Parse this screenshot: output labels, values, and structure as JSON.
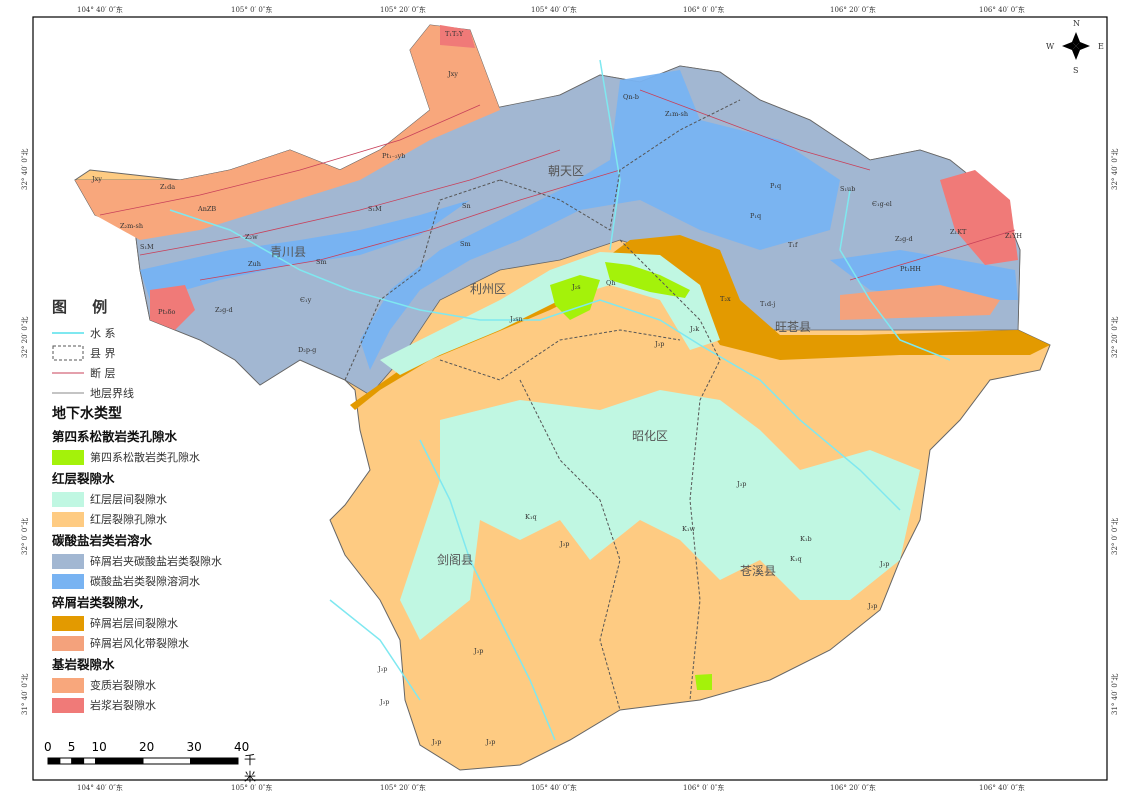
{
  "map": {
    "ticks_top": [
      "104° 40′ 0″东",
      "105° 0′ 0″东",
      "105° 20′ 0″东",
      "105° 40′ 0″东",
      "106° 0′ 0″东",
      "106° 20′ 0″东",
      "106° 40′ 0″东"
    ],
    "ticks_left": [
      "32° 40′ 0″北",
      "32° 20′ 0″北",
      "32° 0′ 0″北",
      "31° 40′ 0″北"
    ],
    "compass": {
      "n": "N",
      "s": "S",
      "e": "E",
      "w": "W"
    },
    "counties": [
      "青川县",
      "朝天区",
      "利州区",
      "旺苍县",
      "昭化区",
      "剑阁县",
      "苍溪县"
    ],
    "geo_labels": [
      "T₁T₂Y",
      "Jxy",
      "Pt₁₋₂yb",
      "Jxy",
      "Z₁da",
      "AnZB",
      "Z₂m-sh",
      "S₁M",
      "Z₂w",
      "S₁M",
      "Zuh",
      "Sm",
      "Z₂g-d",
      "Є₁y",
      "Pt₃δo",
      "D₂p-g",
      "Sm",
      "Sn",
      "Qn-b",
      "Z₁m-sh",
      "P₁q",
      "P₁q",
      "S₁ub",
      "Є₁g-el",
      "Z₂g-d",
      "Z₁KT",
      "Z₁YH",
      "Pt₁HH",
      "T₁f",
      "T₂x",
      "T₁d-j",
      "J₂s",
      "Qh",
      "J₃sn",
      "J₂k",
      "J₃p",
      "K₁q",
      "J₃p",
      "K₁b",
      "K₁q",
      "J₃p",
      "J₃p",
      "K₁w",
      "J₃p",
      "J₃p",
      "J₃p",
      "J₃p",
      "J₃p",
      "J₃p"
    ]
  },
  "colors": {
    "quaternary": "#a4f20a",
    "red_interlayer": "#c0f7e2",
    "red_pore": "#fecb82",
    "clastic_carbonate": "#a2b7d2",
    "carbonate_karst": "#78b3f2",
    "clastic_interlayer": "#e39a00",
    "clastic_weathered": "#f4a27c",
    "metamorphic": "#f8a77c",
    "magmatic": "#f07a78",
    "water": "#7fe8f0",
    "fault": "#c8405a",
    "boundary": "#555555"
  },
  "legend": {
    "title": "图 例",
    "lines": [
      {
        "label": "水 系",
        "type": "water"
      },
      {
        "label": "县 界",
        "type": "boundary"
      },
      {
        "label": "断 层",
        "type": "fault"
      },
      {
        "label": "地层界线",
        "type": "contact"
      }
    ],
    "section_title": "地下水类型",
    "groups": [
      {
        "title": "第四系松散岩类孔隙水",
        "items": [
          {
            "label": "第四系松散岩类孔隙水",
            "color": "#a4f20a"
          }
        ]
      },
      {
        "title": "红层裂隙水",
        "items": [
          {
            "label": "红层层间裂隙水",
            "color": "#c0f7e2"
          },
          {
            "label": "红层裂隙孔隙水",
            "color": "#fecb82"
          }
        ]
      },
      {
        "title": "碳酸盐岩类岩溶水",
        "items": [
          {
            "label": "碎屑岩夹碳酸盐岩类裂隙水",
            "color": "#a2b7d2"
          },
          {
            "label": "碳酸盐岩类裂隙溶洞水",
            "color": "#78b3f2"
          }
        ]
      },
      {
        "title": "碎屑岩类裂隙水,",
        "items": [
          {
            "label": "碎屑岩层间裂隙水",
            "color": "#e39a00"
          },
          {
            "label": "碎屑岩风化带裂隙水",
            "color": "#f4a27c"
          }
        ]
      },
      {
        "title": "基岩裂隙水",
        "items": [
          {
            "label": "变质岩裂隙水",
            "color": "#f8a77c"
          },
          {
            "label": "岩浆岩裂隙水",
            "color": "#f07a78"
          }
        ]
      }
    ]
  },
  "scale": {
    "ticks": [
      "0",
      "5",
      "10",
      "20",
      "30",
      "40"
    ],
    "unit": "千米"
  }
}
